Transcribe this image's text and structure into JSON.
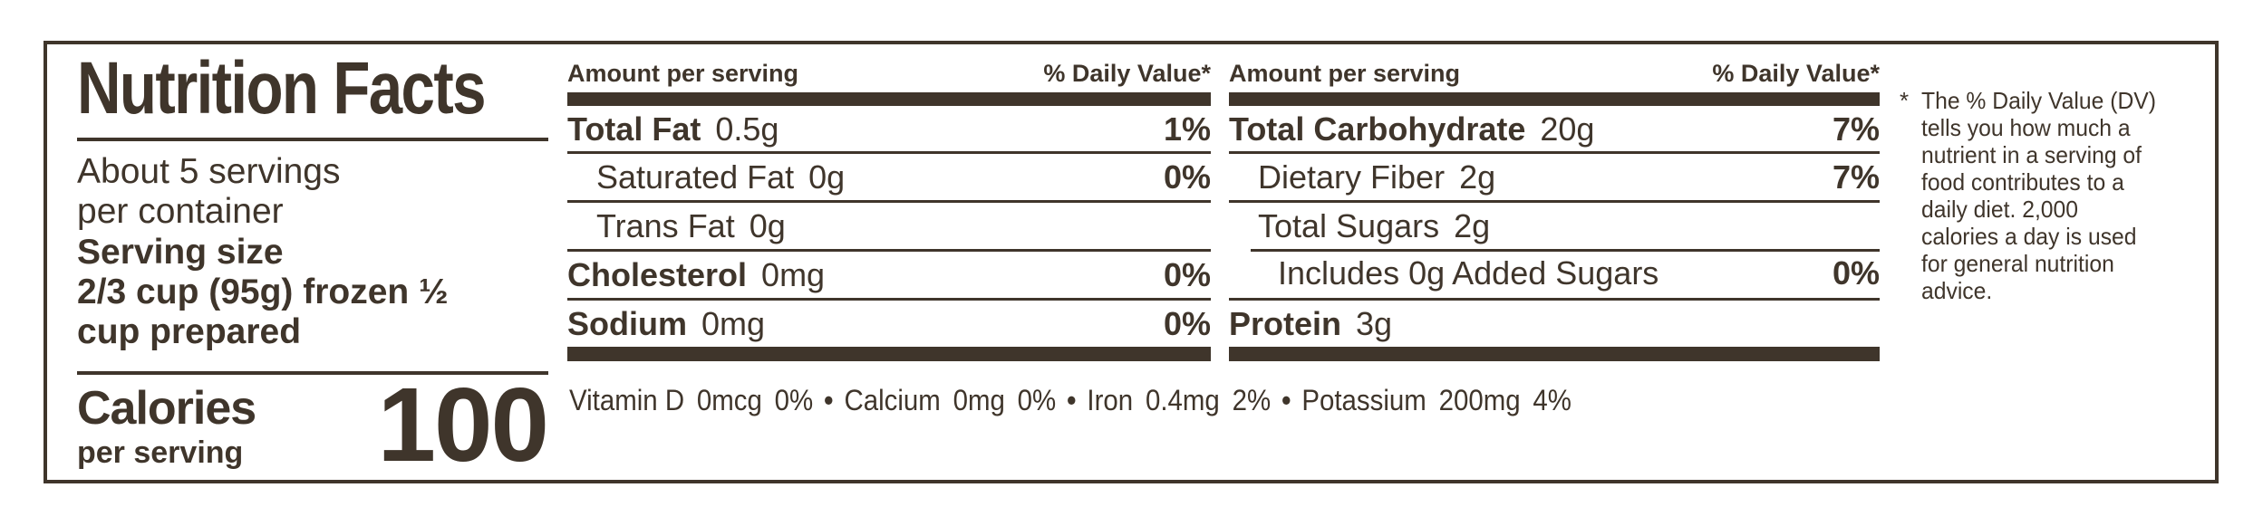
{
  "colors": {
    "ink": "#3f352b",
    "bg": "#ffffff"
  },
  "label": {
    "title": "Nutrition Facts",
    "servings_per_container": "About 5 servings\nper container",
    "serving_size_label": "Serving size",
    "serving_size_value": "2/3 cup (95g) frozen ½\ncup prepared",
    "calories": {
      "label": "Calories",
      "sublabel": "per serving",
      "value": "100"
    }
  },
  "columns": [
    {
      "header_left": "Amount per serving",
      "header_right": "% Daily Value*",
      "rows": [
        {
          "name": "Total Fat",
          "amount": "0.5g",
          "dv": "1%"
        },
        {
          "name": "Saturated Fat",
          "amount": "0g",
          "dv": "0%"
        },
        {
          "name": "Trans Fat",
          "amount": "0g",
          "dv": ""
        },
        {
          "name": "Cholesterol",
          "amount": "0mg",
          "dv": "0%"
        },
        {
          "name": "Sodium",
          "amount": "0mg",
          "dv": "0%"
        }
      ]
    },
    {
      "header_left": "Amount per serving",
      "header_right": "% Daily Value*",
      "rows": [
        {
          "name": "Total Carbohydrate",
          "amount": "20g",
          "dv": "7%"
        },
        {
          "name": "Dietary Fiber",
          "amount": "2g",
          "dv": "7%"
        },
        {
          "name": "Total Sugars",
          "amount": "2g",
          "dv": ""
        },
        {
          "name": "Includes 0g Added Sugars",
          "amount": "",
          "dv": "0%"
        },
        {
          "name": "Protein",
          "amount": "3g",
          "dv": ""
        }
      ]
    }
  ],
  "micronutrients": {
    "separator": "•",
    "items": [
      {
        "name": "Vitamin D",
        "amount": "0mcg",
        "dv": "0%"
      },
      {
        "name": "Calcium",
        "amount": "0mg",
        "dv": "0%"
      },
      {
        "name": "Iron",
        "amount": "0.4mg",
        "dv": "2%"
      },
      {
        "name": "Potassium",
        "amount": "200mg",
        "dv": "4%"
      }
    ]
  },
  "footnote": {
    "marker": "*",
    "text": "The % Daily Value (DV)\ntells you how much a\nnutrient in a serving of\nfood contributes to a\ndaily diet. 2,000\ncalories a day is used\nfor general nutrition\nadvice."
  }
}
